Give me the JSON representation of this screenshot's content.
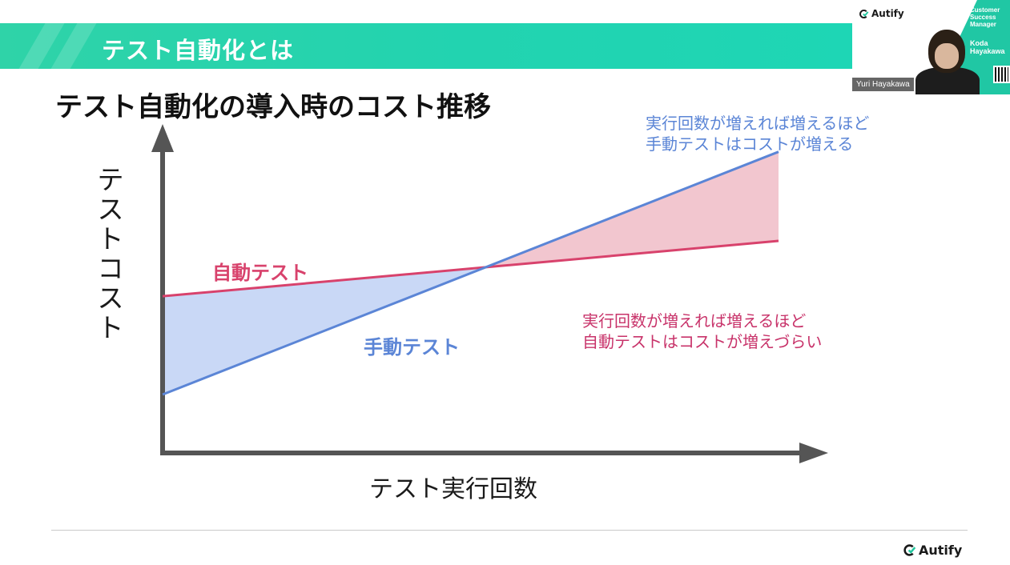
{
  "slide": {
    "header_title": "テスト自動化とは",
    "subtitle": "テスト自動化の導入時のコスト推移",
    "colors": {
      "header": "#22d3b0",
      "auto": "#d8426c",
      "manual": "#5b85d6",
      "auto_fill": "#f2c6cf",
      "manual_fill": "#c9d8f6",
      "axis": "#555555"
    }
  },
  "chart_data": {
    "type": "line",
    "title": "テスト自動化の導入時のコスト推移",
    "xlabel": "テスト実行回数",
    "ylabel": "テストコスト",
    "xlim": [
      0,
      1
    ],
    "ylim": [
      0,
      1
    ],
    "grid": false,
    "x": [
      0,
      1
    ],
    "series": [
      {
        "name": "自動テスト",
        "values": [
          0.51,
          0.69
        ]
      },
      {
        "name": "手動テスト",
        "values": [
          0.19,
          0.98
        ]
      }
    ],
    "annotations": [
      {
        "lines": [
          "実行回数が増えれば増えるほど",
          "手動テストはコストが増える"
        ]
      },
      {
        "lines": [
          "実行回数が増えれば増えるほど",
          "自動テストはコストが増えづらい"
        ]
      }
    ]
  },
  "footer": {
    "logo_text": "Autify"
  },
  "video": {
    "logo_text": "Autify",
    "speaker_name": "Yuri Hayakawa",
    "role_lines": [
      "Customer",
      "Success",
      "Manager"
    ],
    "name_lines": [
      "Koda",
      "Hayakawa"
    ]
  }
}
